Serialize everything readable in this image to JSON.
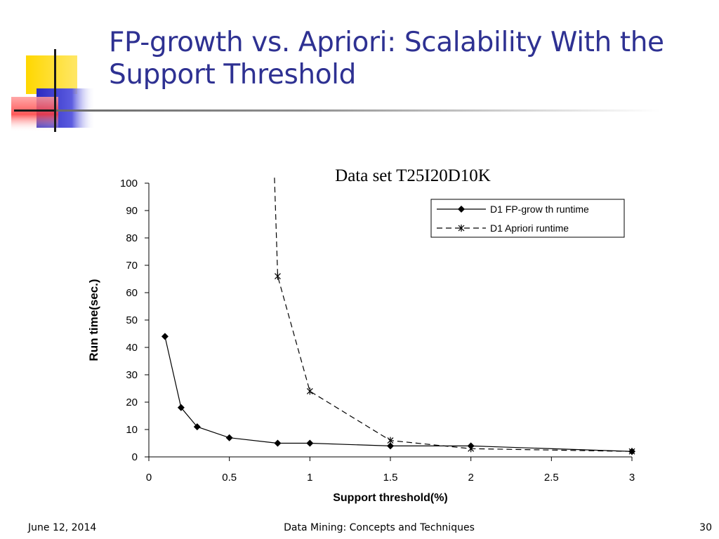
{
  "slide": {
    "title": "FP-growth vs. Apriori: Scalability With the Support Threshold",
    "footer_date": "June 12, 2014",
    "footer_center": "Data Mining: Concepts and Techniques",
    "page_number": "30"
  },
  "colors": {
    "title": "#2e3192",
    "deco_yellow": "#ffd700",
    "deco_blue": "#3535c8",
    "deco_red": "#ff4c4c"
  },
  "chart_data": {
    "type": "line",
    "title": "Data set T25I20D10K",
    "xlabel": "Support threshold(%)",
    "ylabel": "Run time(sec.)",
    "xlim": [
      0,
      3
    ],
    "ylim": [
      0,
      100
    ],
    "x_ticks": [
      0,
      0.5,
      1,
      1.5,
      2,
      2.5,
      3
    ],
    "x_tick_labels": [
      "0",
      "0.5",
      "1",
      "1.5",
      "2",
      "2.5",
      "3"
    ],
    "y_ticks": [
      0,
      10,
      20,
      30,
      40,
      50,
      60,
      70,
      80,
      90,
      100
    ],
    "y_tick_labels": [
      "0",
      "10",
      "20",
      "30",
      "40",
      "50",
      "60",
      "70",
      "80",
      "90",
      "100"
    ],
    "grid": false,
    "legend_position": "top-right",
    "series": [
      {
        "name": "D1 FP-grow th runtime",
        "style": "solid",
        "marker": "diamond",
        "x": [
          0.1,
          0.2,
          0.3,
          0.5,
          0.8,
          1,
          1.5,
          2,
          3
        ],
        "y": [
          44,
          18,
          11,
          7,
          5,
          5,
          4,
          4,
          2
        ]
      },
      {
        "name": "D1 Apriori runtime",
        "style": "dashed",
        "marker": "star",
        "x": [
          0.78,
          0.8,
          1,
          1.5,
          2,
          3
        ],
        "y": [
          102,
          66,
          24,
          6,
          3,
          2
        ]
      }
    ]
  }
}
